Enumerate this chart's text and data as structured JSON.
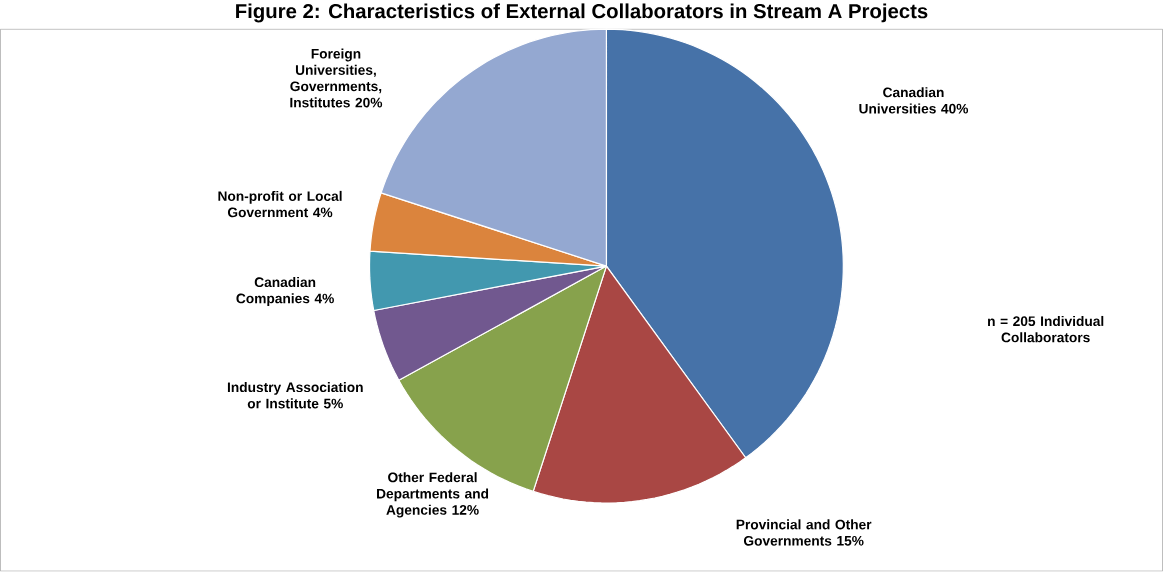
{
  "chart_data": {
    "type": "pie",
    "title": "Figure 2: Characteristics of External Collaborators in Stream A Projects",
    "categories": [
      "Canadian Universities",
      "Provincial and Other Governments",
      "Other Federal Departments and Agencies",
      "Industry Association or Institute",
      "Canadian Companies",
      "Non-profit or Local Government",
      "Foreign Universities, Governments, Institutes"
    ],
    "values": [
      40,
      15,
      12,
      5,
      4,
      4,
      20
    ],
    "value_labels": [
      "40%",
      "15%",
      "12%",
      "5%",
      "4%",
      "4%",
      "20%"
    ],
    "colors": [
      "#4672a8",
      "#a94744",
      "#87a24c",
      "#71588f",
      "#4298af",
      "#db843d",
      "#94a8d1"
    ],
    "annotations": [
      "n = 205 Individual Collaborators"
    ]
  }
}
